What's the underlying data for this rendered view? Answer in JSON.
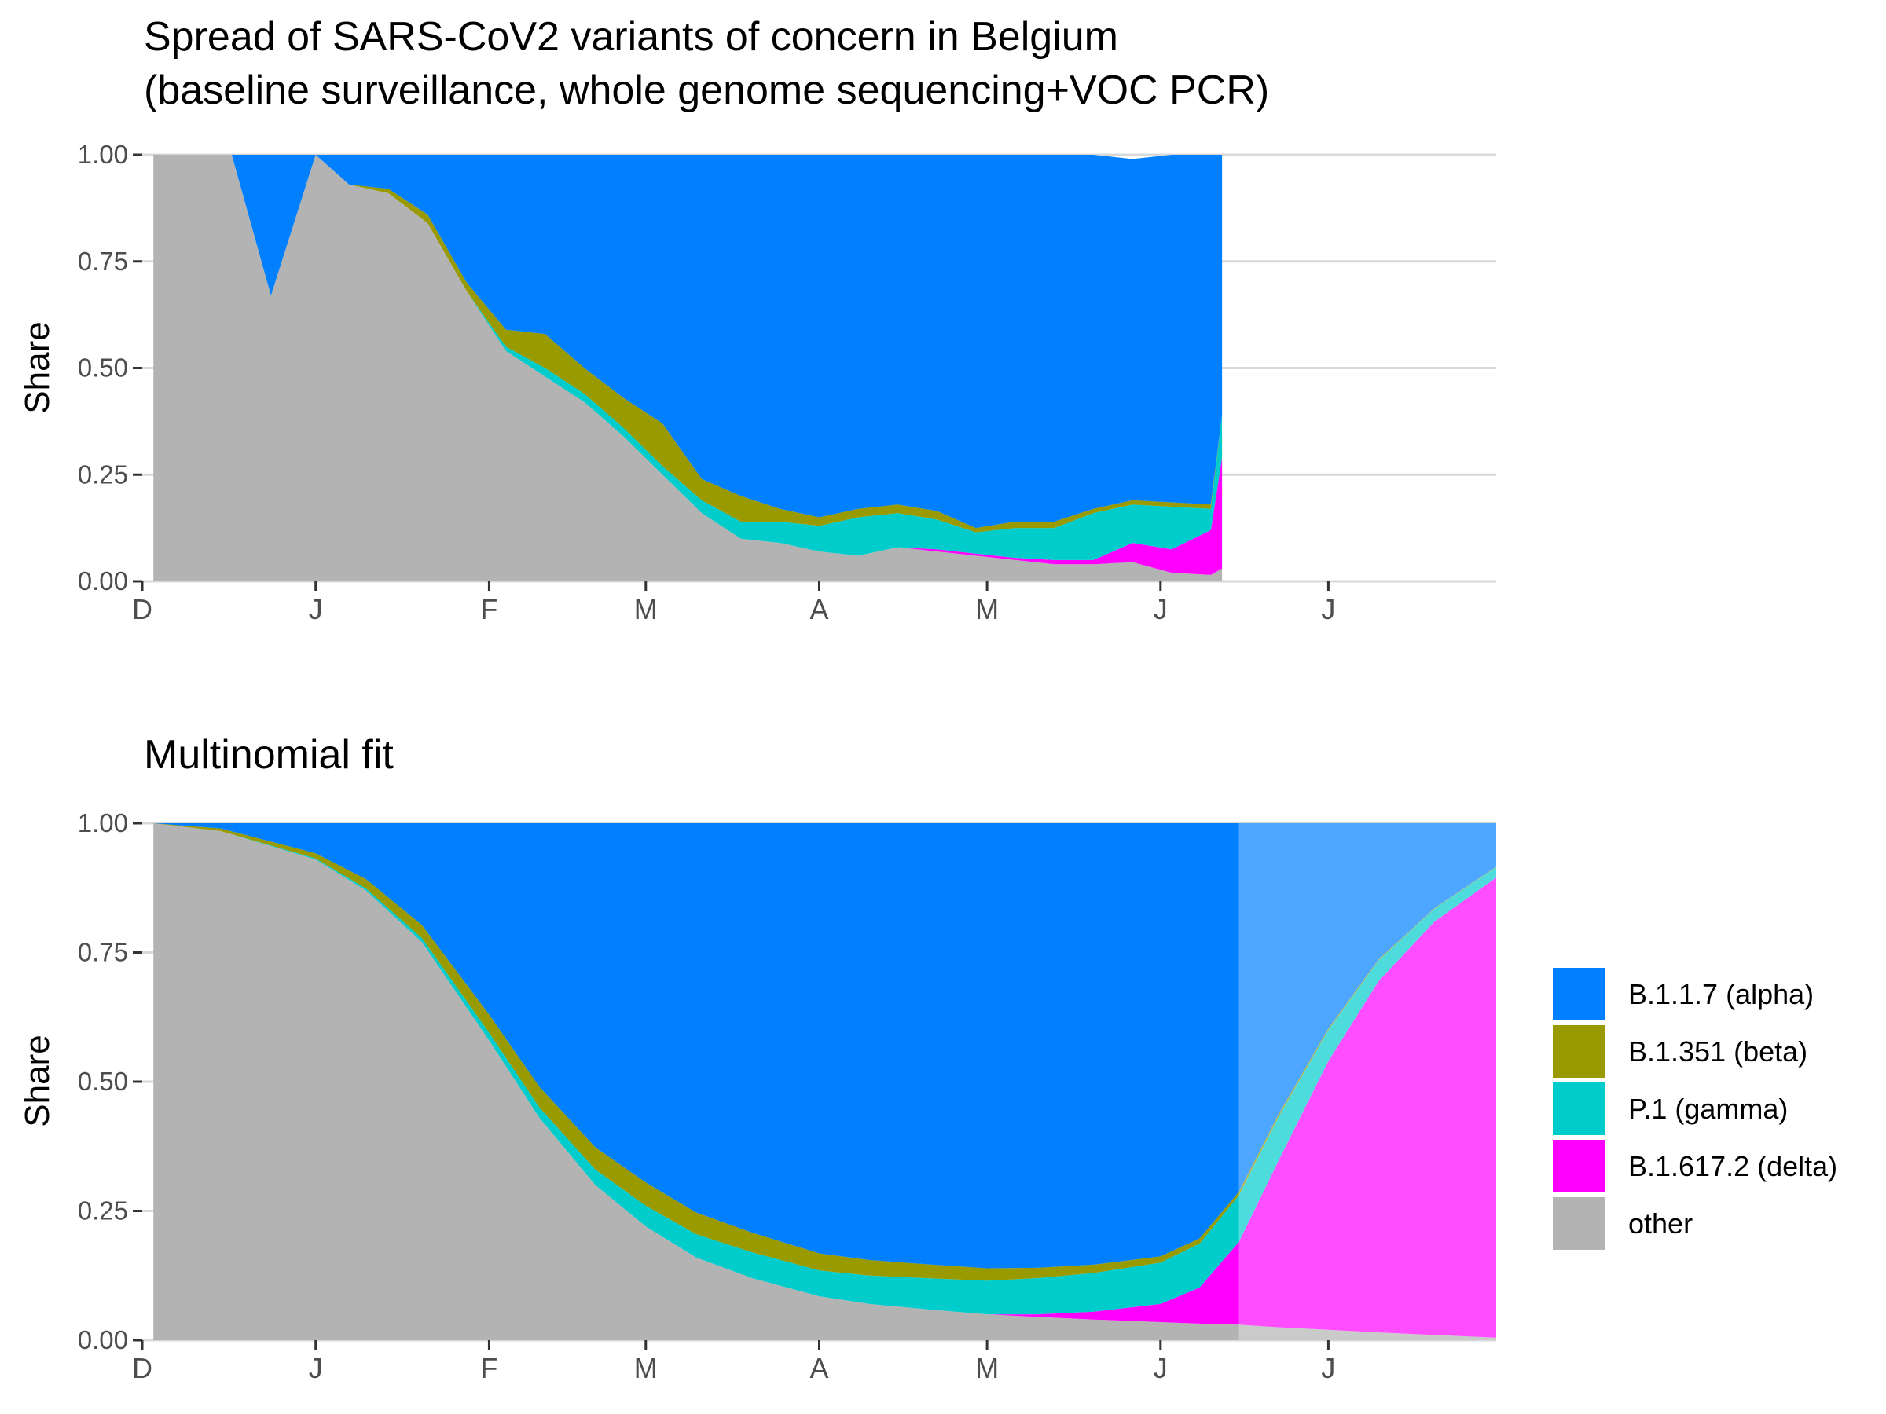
{
  "colors": {
    "alpha": "#0080FF",
    "beta": "#999900",
    "gamma": "#00CCCC",
    "delta": "#FF00FF",
    "other": "#B3B3B3",
    "gridline": "#D9D9D9"
  },
  "legend": [
    {
      "key": "alpha",
      "label": "B.1.1.7 (alpha)"
    },
    {
      "key": "beta",
      "label": "B.1.351 (beta)"
    },
    {
      "key": "gamma",
      "label": "P.1 (gamma)"
    },
    {
      "key": "delta",
      "label": "B.1.617.2 (delta)"
    },
    {
      "key": "other",
      "label": "other"
    }
  ],
  "chart_data": [
    {
      "type": "area",
      "title_line1": "Spread of SARS-CoV2 variants of concern in Belgium",
      "title_line2": "(baseline surveillance, whole genome sequencing+VOC PCR)",
      "ylabel": "Share",
      "xlabel": "",
      "ylim": [
        0,
        1
      ],
      "xlim": [
        "2020-12-01",
        "2021-07-31"
      ],
      "y_ticks": [
        "0.00",
        "0.25",
        "0.50",
        "0.75",
        "1.00"
      ],
      "x_ticks": [
        {
          "date": "2020-12-01",
          "label": "D"
        },
        {
          "date": "2021-01-01",
          "label": "J"
        },
        {
          "date": "2021-02-01",
          "label": "F"
        },
        {
          "date": "2021-03-01",
          "label": "M"
        },
        {
          "date": "2021-04-01",
          "label": "A"
        },
        {
          "date": "2021-05-01",
          "label": "M"
        },
        {
          "date": "2021-06-01",
          "label": "J"
        },
        {
          "date": "2021-07-01",
          "label": "J"
        }
      ],
      "grid": true,
      "x": [
        "2020-12-03",
        "2020-12-17",
        "2020-12-24",
        "2021-01-01",
        "2021-01-07",
        "2021-01-14",
        "2021-01-21",
        "2021-01-28",
        "2021-02-04",
        "2021-02-11",
        "2021-02-18",
        "2021-02-25",
        "2021-03-04",
        "2021-03-11",
        "2021-03-18",
        "2021-03-25",
        "2021-04-01",
        "2021-04-08",
        "2021-04-15",
        "2021-04-22",
        "2021-04-29",
        "2021-05-06",
        "2021-05-13",
        "2021-05-20",
        "2021-05-27",
        "2021-06-03",
        "2021-06-10",
        "2021-06-12"
      ],
      "series": [
        {
          "name": "other",
          "values": [
            1.0,
            1.0,
            0.67,
            1.0,
            0.93,
            0.91,
            0.84,
            0.68,
            0.54,
            0.48,
            0.42,
            0.34,
            0.25,
            0.16,
            0.1,
            0.09,
            0.07,
            0.06,
            0.08,
            0.07,
            0.06,
            0.05,
            0.04,
            0.04,
            0.045,
            0.02,
            0.015,
            0.03
          ]
        },
        {
          "name": "B.1.617.2 (delta)",
          "values": [
            0,
            0,
            0,
            0,
            0,
            0,
            0,
            0,
            0,
            0,
            0,
            0,
            0,
            0,
            0,
            0,
            0,
            0,
            0,
            0.005,
            0.005,
            0.005,
            0.01,
            0.01,
            0.045,
            0.055,
            0.105,
            0.26
          ]
        },
        {
          "name": "P.1 (gamma)",
          "values": [
            0,
            0,
            0,
            0,
            0,
            0,
            0,
            0,
            0.01,
            0.02,
            0.02,
            0.02,
            0.02,
            0.03,
            0.04,
            0.05,
            0.06,
            0.09,
            0.08,
            0.07,
            0.05,
            0.07,
            0.075,
            0.11,
            0.09,
            0.1,
            0.05,
            0.1
          ]
        },
        {
          "name": "B.1.351 (beta)",
          "values": [
            0,
            0,
            0,
            0,
            0,
            0.01,
            0.02,
            0.02,
            0.04,
            0.08,
            0.06,
            0.07,
            0.1,
            0.05,
            0.06,
            0.03,
            0.02,
            0.02,
            0.02,
            0.02,
            0.01,
            0.015,
            0.015,
            0.01,
            0.01,
            0.01,
            0.01,
            0.0
          ]
        },
        {
          "name": "B.1.1.7 (alpha)",
          "values": [
            0,
            0,
            0.33,
            0,
            0.07,
            0.08,
            0.14,
            0.3,
            0.41,
            0.42,
            0.5,
            0.57,
            0.63,
            0.76,
            0.8,
            0.83,
            0.85,
            0.83,
            0.82,
            0.835,
            0.875,
            0.86,
            0.86,
            0.83,
            0.8,
            0.815,
            0.82,
            0.61
          ]
        }
      ]
    },
    {
      "type": "area",
      "title": "Multinomial fit",
      "ylabel": "Share",
      "xlabel": "",
      "ylim": [
        0,
        1
      ],
      "xlim": [
        "2020-12-01",
        "2021-07-31"
      ],
      "y_ticks": [
        "0.00",
        "0.25",
        "0.50",
        "0.75",
        "1.00"
      ],
      "x_ticks": [
        {
          "date": "2020-12-01",
          "label": "D"
        },
        {
          "date": "2021-01-01",
          "label": "J"
        },
        {
          "date": "2021-02-01",
          "label": "F"
        },
        {
          "date": "2021-03-01",
          "label": "M"
        },
        {
          "date": "2021-04-01",
          "label": "A"
        },
        {
          "date": "2021-05-01",
          "label": "M"
        },
        {
          "date": "2021-06-01",
          "label": "J"
        },
        {
          "date": "2021-07-01",
          "label": "J"
        }
      ],
      "grid": true,
      "fit_end": "2021-06-15",
      "x": [
        "2020-12-03",
        "2020-12-15",
        "2021-01-01",
        "2021-01-10",
        "2021-01-20",
        "2021-02-01",
        "2021-02-10",
        "2021-02-20",
        "2021-03-01",
        "2021-03-10",
        "2021-03-20",
        "2021-04-01",
        "2021-04-10",
        "2021-04-20",
        "2021-05-01",
        "2021-05-10",
        "2021-05-20",
        "2021-06-01",
        "2021-06-08",
        "2021-06-15",
        "2021-06-22",
        "2021-07-01",
        "2021-07-10",
        "2021-07-20",
        "2021-07-31"
      ],
      "series": [
        {
          "name": "other",
          "values": [
            1.0,
            0.985,
            0.93,
            0.87,
            0.77,
            0.58,
            0.43,
            0.3,
            0.22,
            0.16,
            0.12,
            0.085,
            0.07,
            0.06,
            0.05,
            0.045,
            0.04,
            0.035,
            0.032,
            0.03,
            0.025,
            0.02,
            0.015,
            0.01,
            0.005
          ]
        },
        {
          "name": "B.1.617.2 (delta)",
          "values": [
            0,
            0,
            0,
            0,
            0,
            0,
            0,
            0,
            0,
            0,
            0,
            0,
            0,
            0,
            0,
            0.005,
            0.015,
            0.035,
            0.07,
            0.16,
            0.32,
            0.52,
            0.68,
            0.8,
            0.89
          ]
        },
        {
          "name": "P.1 (gamma)",
          "values": [
            0,
            0,
            0.002,
            0.004,
            0.008,
            0.015,
            0.02,
            0.03,
            0.04,
            0.045,
            0.05,
            0.05,
            0.055,
            0.06,
            0.065,
            0.07,
            0.075,
            0.08,
            0.085,
            0.09,
            0.085,
            0.06,
            0.04,
            0.025,
            0.02
          ]
        },
        {
          "name": "B.1.351 (beta)",
          "values": [
            0,
            0.005,
            0.01,
            0.018,
            0.025,
            0.035,
            0.04,
            0.043,
            0.045,
            0.042,
            0.038,
            0.033,
            0.03,
            0.027,
            0.024,
            0.02,
            0.016,
            0.012,
            0.01,
            0.007,
            0.005,
            0.003,
            0.002,
            0.001,
            0.001
          ]
        },
        {
          "name": "B.1.1.7 (alpha)",
          "values": [
            0,
            0.01,
            0.058,
            0.108,
            0.197,
            0.37,
            0.51,
            0.627,
            0.695,
            0.753,
            0.792,
            0.832,
            0.845,
            0.853,
            0.861,
            0.86,
            0.854,
            0.838,
            0.803,
            0.713,
            0.565,
            0.397,
            0.263,
            0.164,
            0.084
          ]
        }
      ]
    }
  ]
}
